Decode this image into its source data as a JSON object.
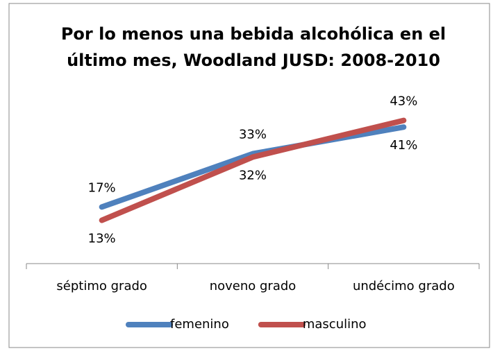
{
  "chart_data": {
    "type": "line",
    "title": "Por lo menos una bebida alcohólica en el último mes, Woodland JUSD: 2008-2010",
    "categories": [
      "séptimo grado",
      "noveno grado",
      "undécimo grado"
    ],
    "series": [
      {
        "name": "femenino",
        "color": "#4f81bd",
        "values": [
          17,
          33,
          41
        ],
        "value_labels": [
          "17%",
          "33%",
          "41%"
        ]
      },
      {
        "name": "masculino",
        "color": "#c0504d",
        "values": [
          13,
          32,
          43
        ],
        "value_labels": [
          "13%",
          "32%",
          "43%"
        ]
      }
    ],
    "ylim": [
      0,
      50
    ],
    "legend": "bottom"
  }
}
